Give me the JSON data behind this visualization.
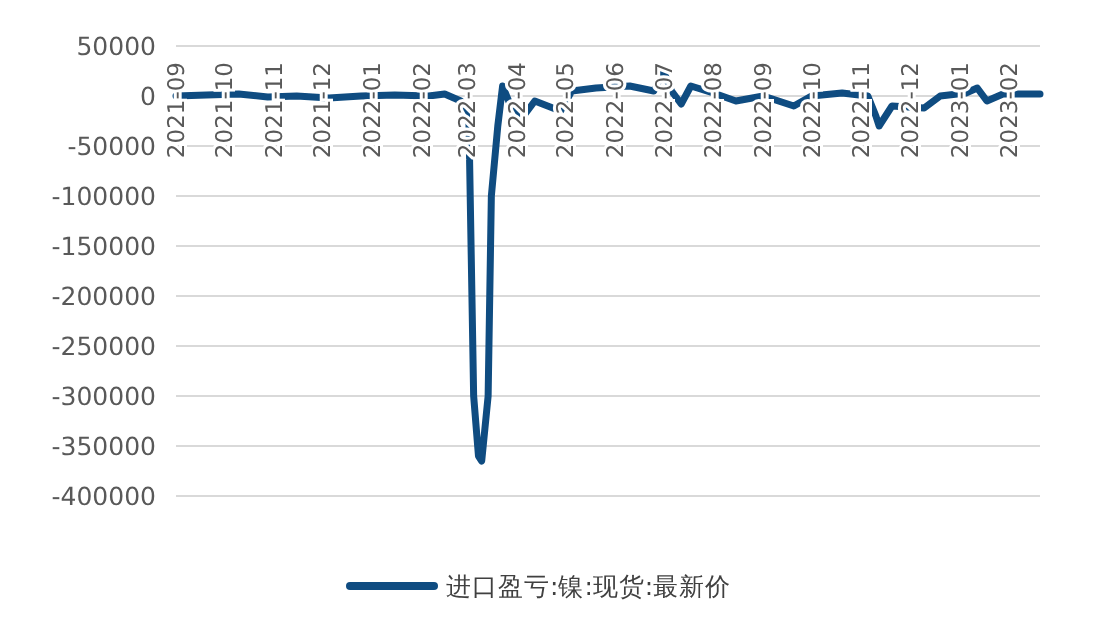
{
  "chart_data": {
    "type": "line",
    "xlim": [
      "2021-09-01",
      "2023-02-20"
    ],
    "xticks": [
      "2021-09",
      "2021-10",
      "2021-11",
      "2021-12",
      "2022-01",
      "2022-02",
      "2022-03",
      "2022-04",
      "2022-05",
      "2022-06",
      "2022-07",
      "2022-08",
      "2022-09",
      "2022-10",
      "2022-11",
      "2022-12",
      "2023-01",
      "2023-02"
    ],
    "ylim": [
      -400000,
      50000
    ],
    "yticks": [
      50000,
      0,
      -50000,
      -100000,
      -150000,
      -200000,
      -250000,
      -300000,
      -350000,
      -400000
    ],
    "grid": "y",
    "legend": "bottom",
    "line_style": "solid",
    "series": [
      {
        "name": "进口盈亏:镍:现货:最新价",
        "color": "#0f4c81",
        "x": [
          "2021-09-01",
          "2021-09-20",
          "2021-10-10",
          "2021-10-28",
          "2021-11-15",
          "2021-12-05",
          "2021-12-25",
          "2022-01-15",
          "2022-02-05",
          "2022-02-15",
          "2022-02-25",
          "2022-03-02",
          "2022-03-05",
          "2022-03-08",
          "2022-03-10",
          "2022-03-14",
          "2022-03-16",
          "2022-03-20",
          "2022-03-23",
          "2022-03-28",
          "2022-04-05",
          "2022-04-12",
          "2022-04-20",
          "2022-04-28",
          "2022-05-05",
          "2022-05-20",
          "2022-06-10",
          "2022-06-25",
          "2022-07-01",
          "2022-07-06",
          "2022-07-12",
          "2022-07-18",
          "2022-08-01",
          "2022-08-15",
          "2022-09-01",
          "2022-09-20",
          "2022-10-01",
          "2022-10-20",
          "2022-11-05",
          "2022-11-10",
          "2022-11-12",
          "2022-11-20",
          "2022-12-10",
          "2022-12-20",
          "2023-01-05",
          "2023-01-12",
          "2023-01-18",
          "2023-01-28",
          "2023-02-20"
        ],
        "values": [
          0,
          1000,
          2000,
          -1000,
          0,
          -2000,
          0,
          1000,
          0,
          2000,
          -5000,
          -20000,
          -300000,
          -360000,
          -365000,
          -300000,
          -100000,
          -30000,
          10000,
          -10000,
          -20000,
          -5000,
          -10000,
          -15000,
          5000,
          8000,
          10000,
          5000,
          25000,
          5000,
          -8000,
          10000,
          3000,
          -5000,
          0,
          -10000,
          0,
          3000,
          0,
          -20000,
          -30000,
          -10000,
          -12000,
          0,
          3000,
          8000,
          -5000,
          2000,
          2000
        ]
      }
    ]
  }
}
